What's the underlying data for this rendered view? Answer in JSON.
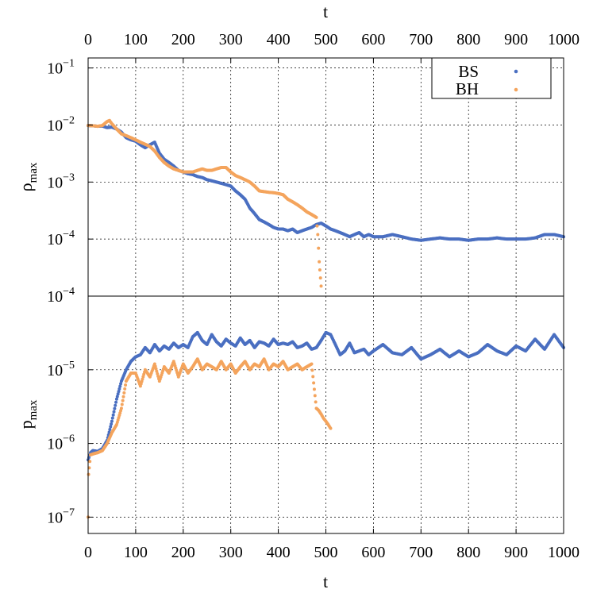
{
  "colors": {
    "BS": "#4a6fc1",
    "BH": "#f4a45d"
  },
  "legend": [
    {
      "label": "BS",
      "color": "#4a6fc1"
    },
    {
      "label": "BH",
      "color": "#f4a45d"
    }
  ],
  "chart_data": [
    {
      "type": "scatter",
      "panel": "top",
      "ylabel_main": "ρ",
      "ylabel_sub": "max",
      "xlabel": "t",
      "x_axis_position": "top",
      "xlim": [
        0,
        1000
      ],
      "ylim": [
        1e-05,
        0.15
      ],
      "yscale": "log",
      "grid": true,
      "legend_position": "top-right",
      "xticks": [
        "0",
        "100",
        "200",
        "300",
        "400",
        "500",
        "600",
        "700",
        "800",
        "900",
        "1000"
      ],
      "yticks": [
        {
          "base": "10",
          "exp": "−1",
          "value": 0.1
        },
        {
          "base": "10",
          "exp": "−2",
          "value": 0.01
        },
        {
          "base": "10",
          "exp": "−3",
          "value": 0.001
        },
        {
          "base": "10",
          "exp": "−4",
          "value": 0.0001
        }
      ],
      "series": [
        {
          "name": "BS",
          "x": [
            0,
            10,
            20,
            30,
            40,
            50,
            60,
            70,
            80,
            90,
            100,
            110,
            120,
            130,
            140,
            150,
            160,
            170,
            180,
            190,
            200,
            210,
            220,
            230,
            240,
            250,
            260,
            270,
            280,
            290,
            300,
            310,
            320,
            330,
            340,
            350,
            360,
            370,
            380,
            390,
            400,
            410,
            420,
            430,
            440,
            450,
            460,
            470,
            480,
            490,
            500,
            510,
            520,
            530,
            540,
            550,
            560,
            570,
            580,
            590,
            600,
            620,
            640,
            660,
            680,
            700,
            720,
            740,
            760,
            780,
            800,
            820,
            840,
            860,
            880,
            900,
            920,
            940,
            960,
            980,
            1000
          ],
          "y": [
            0.0098,
            0.0097,
            0.0095,
            0.0096,
            0.009,
            0.0092,
            0.0085,
            0.0075,
            0.006,
            0.0055,
            0.0052,
            0.0045,
            0.004,
            0.0045,
            0.005,
            0.0032,
            0.0025,
            0.0022,
            0.0019,
            0.0016,
            0.0015,
            0.0014,
            0.00135,
            0.00125,
            0.0012,
            0.0011,
            0.00105,
            0.001,
            0.00095,
            0.0009,
            0.00085,
            0.0007,
            0.0006,
            0.0005,
            0.00035,
            0.00028,
            0.00022,
            0.0002,
            0.00018,
            0.00016,
            0.00015,
            0.00015,
            0.00014,
            0.00015,
            0.00013,
            0.00014,
            0.00015,
            0.00016,
            0.00018,
            0.00019,
            0.00017,
            0.00015,
            0.00014,
            0.00013,
            0.00012,
            0.00011,
            0.00012,
            0.00013,
            0.00011,
            0.00012,
            0.00011,
            0.00011,
            0.00012,
            0.00011,
            0.0001,
            9.5e-05,
            0.0001,
            0.000105,
            0.0001,
            0.0001,
            9.5e-05,
            0.0001,
            0.0001,
            0.000105,
            0.0001,
            0.0001,
            0.0001,
            0.000105,
            0.00012,
            0.00012,
            0.00011
          ]
        },
        {
          "name": "BH",
          "x": [
            0,
            10,
            20,
            30,
            40,
            45,
            50,
            60,
            70,
            80,
            90,
            100,
            110,
            120,
            130,
            140,
            150,
            160,
            170,
            180,
            190,
            200,
            210,
            220,
            230,
            240,
            250,
            260,
            270,
            280,
            290,
            300,
            310,
            320,
            330,
            340,
            350,
            360,
            370,
            380,
            390,
            400,
            410,
            420,
            430,
            440,
            450,
            460,
            470,
            480,
            483,
            486,
            490
          ],
          "y": [
            0.0098,
            0.0097,
            0.0095,
            0.0098,
            0.0115,
            0.012,
            0.0105,
            0.0085,
            0.007,
            0.0065,
            0.006,
            0.0055,
            0.005,
            0.0046,
            0.0042,
            0.0035,
            0.0027,
            0.0022,
            0.0019,
            0.0017,
            0.0016,
            0.0015,
            0.0015,
            0.0015,
            0.0016,
            0.0017,
            0.0016,
            0.0016,
            0.0017,
            0.0018,
            0.0018,
            0.0015,
            0.0013,
            0.0012,
            0.0011,
            0.001,
            0.00085,
            0.0007,
            0.00068,
            0.00066,
            0.00065,
            0.00063,
            0.0006,
            0.0005,
            0.00045,
            0.0004,
            0.00035,
            0.0003,
            0.00027,
            0.00024,
            0.00012,
            4e-05,
            1.5e-05
          ]
        }
      ]
    },
    {
      "type": "scatter",
      "panel": "bottom",
      "ylabel_main": "p",
      "ylabel_sub": "max",
      "xlabel": "t",
      "x_axis_position": "bottom",
      "xlim": [
        0,
        1000
      ],
      "ylim": [
        6e-08,
        0.0001
      ],
      "yscale": "log",
      "grid": true,
      "xticks": [
        "0",
        "100",
        "200",
        "300",
        "400",
        "500",
        "600",
        "700",
        "800",
        "900",
        "1000"
      ],
      "yticks": [
        {
          "base": "10",
          "exp": "−4",
          "value": 0.0001
        },
        {
          "base": "10",
          "exp": "−5",
          "value": 1e-05
        },
        {
          "base": "10",
          "exp": "−6",
          "value": 1e-06
        },
        {
          "base": "10",
          "exp": "−7",
          "value": 1e-07
        }
      ],
      "series": [
        {
          "name": "BS",
          "x": [
            0,
            5,
            10,
            20,
            30,
            40,
            50,
            60,
            70,
            80,
            90,
            100,
            110,
            120,
            130,
            140,
            150,
            160,
            170,
            180,
            190,
            200,
            210,
            220,
            230,
            240,
            250,
            260,
            270,
            280,
            290,
            300,
            310,
            320,
            330,
            340,
            350,
            360,
            370,
            380,
            390,
            400,
            410,
            420,
            430,
            440,
            450,
            460,
            470,
            480,
            490,
            500,
            510,
            520,
            530,
            540,
            550,
            560,
            570,
            580,
            590,
            600,
            620,
            640,
            660,
            680,
            700,
            720,
            740,
            760,
            780,
            800,
            820,
            840,
            860,
            880,
            900,
            920,
            940,
            960,
            980,
            1000
          ],
          "y": [
            6e-07,
            7.5e-07,
            8e-07,
            7.8e-07,
            8.5e-07,
            1.1e-06,
            2e-06,
            4e-06,
            7e-06,
            1e-05,
            1.3e-05,
            1.5e-05,
            1.6e-05,
            2e-05,
            1.7e-05,
            2.2e-05,
            1.8e-05,
            2.1e-05,
            1.9e-05,
            2.3e-05,
            2e-05,
            2.2e-05,
            2e-05,
            2.8e-05,
            3.2e-05,
            2.5e-05,
            2.2e-05,
            3e-05,
            2.4e-05,
            2.1e-05,
            2.6e-05,
            2.3e-05,
            2.1e-05,
            2.7e-05,
            2.2e-05,
            2.5e-05,
            2e-05,
            2.4e-05,
            2.3e-05,
            2.1e-05,
            2.6e-05,
            2.2e-05,
            2.3e-05,
            2.2e-05,
            2.4e-05,
            2e-05,
            2.1e-05,
            2.3e-05,
            1.9e-05,
            2e-05,
            2.5e-05,
            3.2e-05,
            3e-05,
            2.2e-05,
            1.6e-05,
            1.8e-05,
            2.3e-05,
            1.7e-05,
            1.8e-05,
            1.9e-05,
            1.6e-05,
            1.8e-05,
            2.2e-05,
            1.7e-05,
            1.6e-05,
            2e-05,
            1.4e-05,
            1.6e-05,
            1.9e-05,
            1.5e-05,
            1.8e-05,
            1.5e-05,
            1.7e-05,
            2.2e-05,
            1.8e-05,
            1.6e-05,
            2.1e-05,
            1.8e-05,
            2.6e-05,
            1.9e-05,
            3e-05,
            2e-05
          ]
        },
        {
          "name": "BH",
          "x": [
            0,
            1,
            5,
            10,
            20,
            30,
            40,
            50,
            60,
            70,
            80,
            90,
            100,
            110,
            120,
            130,
            140,
            150,
            160,
            170,
            180,
            190,
            200,
            210,
            220,
            230,
            240,
            250,
            260,
            270,
            280,
            290,
            300,
            310,
            320,
            330,
            340,
            350,
            360,
            370,
            380,
            390,
            400,
            410,
            420,
            430,
            440,
            450,
            460,
            470,
            480,
            485,
            490,
            495,
            500,
            505,
            510
          ],
          "y": [
            1e-07,
            3.8e-07,
            7e-07,
            7.2e-07,
            7.5e-07,
            8e-07,
            1e-06,
            1.4e-06,
            1.8e-06,
            3e-06,
            7e-06,
            9e-06,
            9e-06,
            6e-06,
            1e-05,
            8e-06,
            1.2e-05,
            7e-06,
            1.1e-05,
            9e-06,
            1.3e-05,
            8e-06,
            1.2e-05,
            9e-06,
            1.1e-05,
            1.4e-05,
            1e-05,
            1.2e-05,
            1.1e-05,
            1e-05,
            1.3e-05,
            1e-05,
            1.2e-05,
            9e-06,
            1.1e-05,
            1.3e-05,
            1e-05,
            1.2e-05,
            1.1e-05,
            1.4e-05,
            1e-05,
            1.2e-05,
            1.1e-05,
            1.3e-05,
            1e-05,
            1.1e-05,
            1.2e-05,
            1e-05,
            1.1e-05,
            1.2e-05,
            3e-06,
            2.8e-06,
            2.5e-06,
            2.2e-06,
            2e-06,
            1.8e-06,
            1.6e-06
          ]
        }
      ]
    }
  ]
}
